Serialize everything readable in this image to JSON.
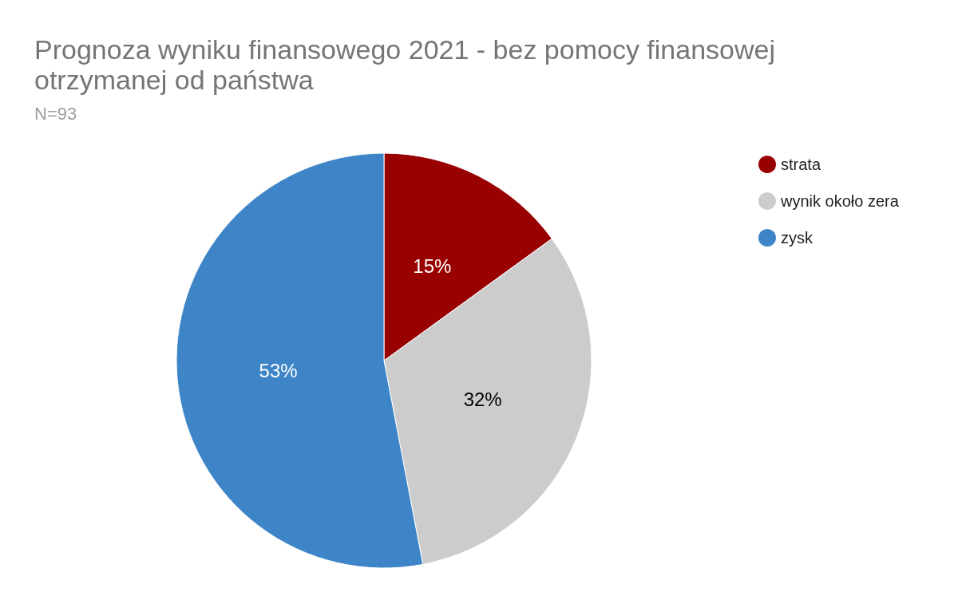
{
  "chart_data": {
    "type": "pie",
    "title": "Prognoza wyniku finansowego 2021 - bez pomocy finansowej\notrzymanej od państwa",
    "subtitle": "N=93",
    "categories": [
      "strata",
      "wynik około zera",
      "zysk"
    ],
    "values": [
      15,
      32,
      53
    ],
    "colors": [
      "#990000",
      "#cccccc",
      "#3d85c6"
    ],
    "value_labels": [
      "15%",
      "32%",
      "53%"
    ],
    "legend": "top right"
  }
}
